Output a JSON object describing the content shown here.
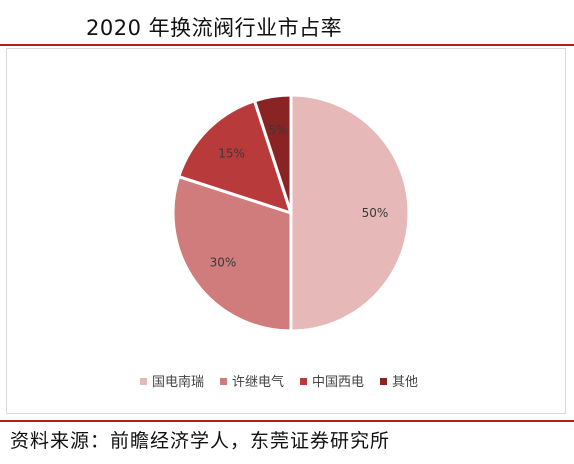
{
  "header": {
    "title": "2020 年换流阀行业市占率"
  },
  "chart_data": {
    "type": "pie",
    "title": "2020 年换流阀行业市占率",
    "series": [
      {
        "name": "国电南瑞",
        "value": 50,
        "label": "50%",
        "color": "#e6b8b8"
      },
      {
        "name": "许继电气",
        "value": 30,
        "label": "30%",
        "color": "#d07c7c"
      },
      {
        "name": "中国西电",
        "value": 15,
        "label": "15%",
        "color": "#b83a3a"
      },
      {
        "name": "其他",
        "value": 5,
        "label": "5%",
        "color": "#8a2323"
      }
    ],
    "start_angle": "12 o'clock",
    "direction": "clockwise",
    "legend_position": "bottom-center"
  },
  "footer": {
    "source": "资料来源：前瞻经济学人，东莞证券研究所"
  }
}
